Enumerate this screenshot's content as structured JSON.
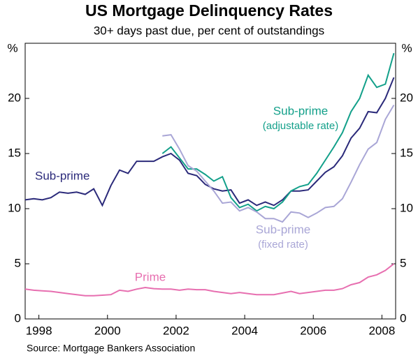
{
  "chart_data": {
    "type": "line",
    "title": "US Mortgage Delinquency Rates",
    "subtitle": "30+ days past due, per cent of outstandings",
    "y_unit": "%",
    "source": "Source: Mortgage Bankers Association",
    "x": [
      1997.6,
      1997.85,
      1998.1,
      1998.35,
      1998.6,
      1998.85,
      1999.1,
      1999.35,
      1999.6,
      1999.85,
      2000.1,
      2000.35,
      2000.6,
      2000.85,
      2001.1,
      2001.35,
      2001.6,
      2001.85,
      2002.1,
      2002.35,
      2002.6,
      2002.85,
      2003.1,
      2003.35,
      2003.6,
      2003.85,
      2004.1,
      2004.35,
      2004.6,
      2004.85,
      2005.1,
      2005.35,
      2005.6,
      2005.85,
      2006.1,
      2006.35,
      2006.6,
      2006.85,
      2007.1,
      2007.35,
      2007.6,
      2007.85,
      2008.1,
      2008.35
    ],
    "xlim": [
      1997.6,
      2008.4
    ],
    "xticks": [
      1998,
      2000,
      2002,
      2004,
      2006,
      2008
    ],
    "ylim": [
      0,
      25
    ],
    "yticks": [
      0,
      5,
      10,
      15,
      20
    ],
    "grid": false,
    "series": [
      {
        "name": "Sub-prime",
        "color": "#2b2a7a",
        "values": [
          10.8,
          10.9,
          10.8,
          11.0,
          11.5,
          11.4,
          11.5,
          11.3,
          11.8,
          10.3,
          12.1,
          13.5,
          13.2,
          14.3,
          14.3,
          14.3,
          14.7,
          15.0,
          14.4,
          13.2,
          13.0,
          12.2,
          11.8,
          11.6,
          11.7,
          10.5,
          10.8,
          10.3,
          10.6,
          10.3,
          10.8,
          11.6,
          11.6,
          11.7,
          12.5,
          13.3,
          13.8,
          14.8,
          16.4,
          17.3,
          18.8,
          18.7,
          20.0,
          21.9
        ]
      },
      {
        "name": "Sub-prime",
        "note": "(adjustable rate)",
        "color": "#13a08a",
        "values": [
          null,
          null,
          null,
          null,
          null,
          null,
          null,
          null,
          null,
          null,
          null,
          null,
          null,
          null,
          null,
          null,
          15.0,
          15.6,
          14.6,
          13.6,
          13.6,
          13.1,
          12.5,
          12.9,
          11.0,
          10.1,
          10.4,
          9.8,
          10.2,
          10.0,
          10.6,
          11.6,
          12.0,
          12.2,
          13.2,
          14.4,
          15.6,
          16.9,
          18.8,
          20.0,
          22.1,
          21.0,
          21.3,
          24.1
        ]
      },
      {
        "name": "Sub-prime",
        "note": "(fixed rate)",
        "color": "#a9a6d6",
        "values": [
          null,
          null,
          null,
          null,
          null,
          null,
          null,
          null,
          null,
          null,
          null,
          null,
          null,
          null,
          null,
          null,
          16.6,
          16.7,
          15.4,
          13.9,
          13.4,
          12.5,
          11.6,
          10.5,
          10.6,
          9.8,
          10.1,
          9.7,
          9.1,
          9.1,
          8.8,
          9.7,
          9.6,
          9.2,
          9.6,
          10.1,
          10.2,
          10.9,
          12.4,
          14.0,
          15.4,
          16.0,
          18.1,
          19.4
        ]
      },
      {
        "name": "Prime",
        "color": "#e76fb0",
        "values": [
          2.7,
          2.6,
          2.55,
          2.5,
          2.4,
          2.3,
          2.2,
          2.1,
          2.1,
          2.15,
          2.2,
          2.6,
          2.5,
          2.7,
          2.85,
          2.75,
          2.7,
          2.7,
          2.6,
          2.7,
          2.65,
          2.65,
          2.5,
          2.4,
          2.3,
          2.4,
          2.3,
          2.2,
          2.2,
          2.2,
          2.35,
          2.5,
          2.3,
          2.4,
          2.5,
          2.6,
          2.6,
          2.75,
          3.1,
          3.3,
          3.8,
          4.0,
          4.4,
          5.0
        ]
      }
    ]
  }
}
